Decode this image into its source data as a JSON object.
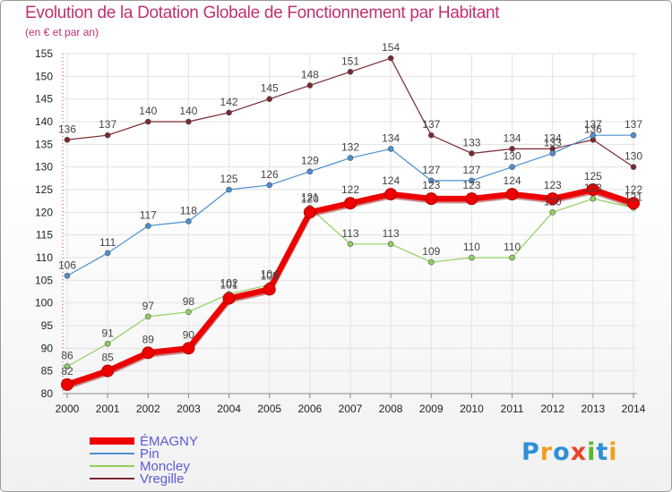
{
  "title": "Evolution de la Dotation Globale de Fonctionnement par Habitant",
  "subtitle": "(en € et par an)",
  "logo": {
    "letters": [
      "P",
      "r",
      "o",
      "x",
      "i",
      "t",
      "i"
    ],
    "colors": [
      "#2f8fd8",
      "#f0a020",
      "#2f8fd8",
      "#e8452c",
      "#58b82c",
      "#2f8fd8",
      "#f0a020"
    ]
  },
  "chart_data": {
    "type": "line",
    "title": "Evolution de la Dotation Globale de Fonctionnement par Habitant",
    "ylabel": "(en € et par an)",
    "ylim": [
      80,
      155
    ],
    "yticks": [
      80,
      85,
      90,
      95,
      100,
      105,
      110,
      115,
      120,
      125,
      130,
      135,
      140,
      145,
      150,
      155
    ],
    "categories": [
      "2000",
      "2001",
      "2002",
      "2003",
      "2004",
      "2005",
      "2006",
      "2007",
      "2008",
      "2009",
      "2010",
      "2011",
      "2012",
      "2013",
      "2014"
    ],
    "legend_position": "bottom-left",
    "series": [
      {
        "name": "Vregille",
        "color": "#7a2830",
        "values": [
          136,
          137,
          140,
          140,
          142,
          145,
          148,
          151,
          154,
          137,
          133,
          134,
          134,
          136,
          130
        ]
      },
      {
        "name": "Pin",
        "color": "#4a90d0",
        "values": [
          106,
          111,
          117,
          118,
          125,
          126,
          129,
          132,
          134,
          127,
          127,
          130,
          133,
          137,
          137
        ]
      },
      {
        "name": "Moncley",
        "color": "#8fd060",
        "values": [
          86,
          91,
          97,
          98,
          102,
          104,
          121,
          113,
          113,
          109,
          110,
          110,
          120,
          123,
          121
        ]
      },
      {
        "name": "ÉMAGNY",
        "color": "#ee0000",
        "values": [
          82,
          85,
          89,
          90,
          101,
          103,
          120,
          122,
          124,
          123,
          123,
          124,
          123,
          125,
          122
        ]
      }
    ],
    "legend": [
      "ÉMAGNY",
      "Pin",
      "Moncley",
      "Vregille"
    ]
  }
}
